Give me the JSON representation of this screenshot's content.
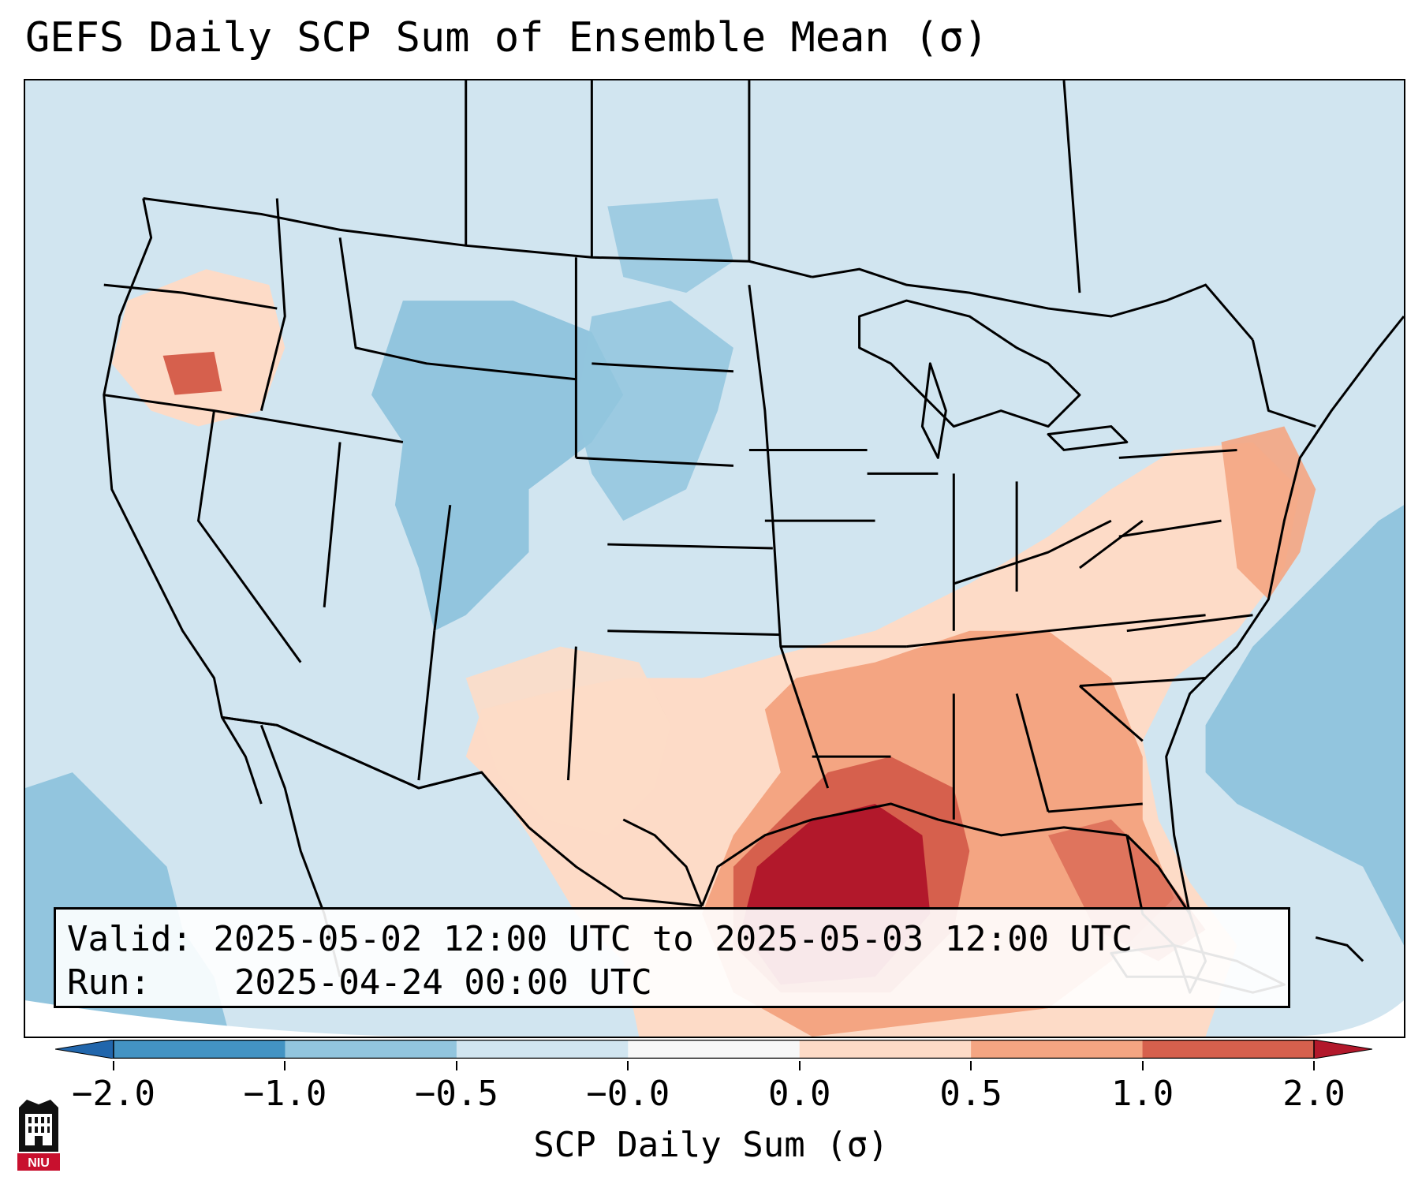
{
  "title": "GEFS Daily SCP Sum of Ensemble Mean (σ)",
  "info": {
    "valid_label": "Valid:",
    "valid_value": "2025-05-02 12:00 UTC to 2025-05-03 12:00 UTC",
    "run_label": "Run:",
    "run_value": "2025-04-24 00:00 UTC"
  },
  "colorbar": {
    "label": "SCP Daily Sum (σ)",
    "tick_labels": [
      "−2.0",
      "−1.0",
      "−0.5",
      "−0.0",
      "0.0",
      "0.5",
      "1.0",
      "2.0"
    ],
    "bins": [
      {
        "color": "#2166ac"
      },
      {
        "color": "#4393c3"
      },
      {
        "color": "#92c5de"
      },
      {
        "color": "#d1e5f0"
      },
      {
        "color": "#f7f7f7"
      },
      {
        "color": "#fddbc7"
      },
      {
        "color": "#f4a582"
      },
      {
        "color": "#d6604d"
      },
      {
        "color": "#b2182b"
      }
    ],
    "extend": "both"
  },
  "map": {
    "projection": "Lambert conformal, CONUS",
    "background_color": "#d1e5f0",
    "features": [
      "coastlines",
      "state-borders",
      "country-borders"
    ]
  },
  "logo": {
    "text": "NIU"
  }
}
